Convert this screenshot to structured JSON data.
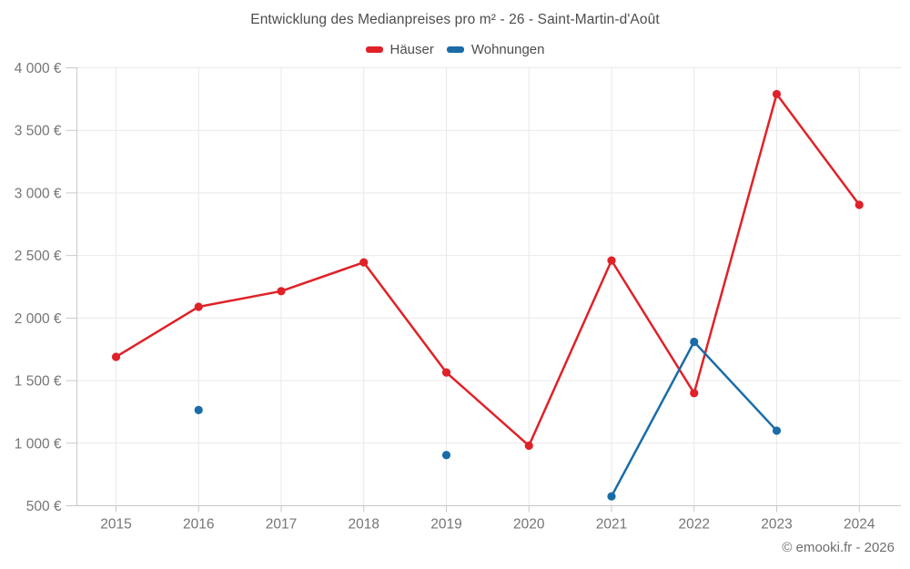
{
  "page": {
    "background": "#ffffff"
  },
  "header": {
    "title": "Entwicklung des Medianpreises pro m² - 26 - Saint-Martin-d'Août"
  },
  "footer": {
    "credit": "© emooki.fr - 2026"
  },
  "colors": {
    "hauser_red": "#e02128",
    "wohnungen_blue": "#1a6ca8",
    "gridline": "#e9e9e9",
    "axis_line": "#c9c9c9",
    "tick_label": "#757575",
    "title_text": "#4d4d4d"
  },
  "chart_data": {
    "type": "line",
    "title": "Entwicklung des Medianpreises pro m² - 26 - Saint-Martin-d'Août",
    "xlabel": "",
    "ylabel": "",
    "categories": [
      "2015",
      "2016",
      "2017",
      "2018",
      "2019",
      "2020",
      "2021",
      "2022",
      "2023",
      "2024"
    ],
    "series": [
      {
        "name": "Häuser",
        "color": "#e02128",
        "values": [
          1690,
          2090,
          2215,
          2445,
          1565,
          980,
          2460,
          1400,
          3790,
          2905
        ]
      },
      {
        "name": "Wohnungen",
        "color": "#1a6ca8",
        "values": [
          null,
          1265,
          null,
          null,
          905,
          null,
          575,
          1810,
          1100,
          null
        ]
      }
    ],
    "ylim": [
      500,
      4000
    ],
    "ytick_step": 500,
    "ytick_labels": [
      "500 €",
      "1 000 €",
      "1 500 €",
      "2 000 €",
      "2 500 €",
      "3 000 €",
      "3 500 €",
      "4 000 €"
    ],
    "grid": true,
    "legend_position": "top",
    "gap_policy": "lines broken at missing values"
  }
}
